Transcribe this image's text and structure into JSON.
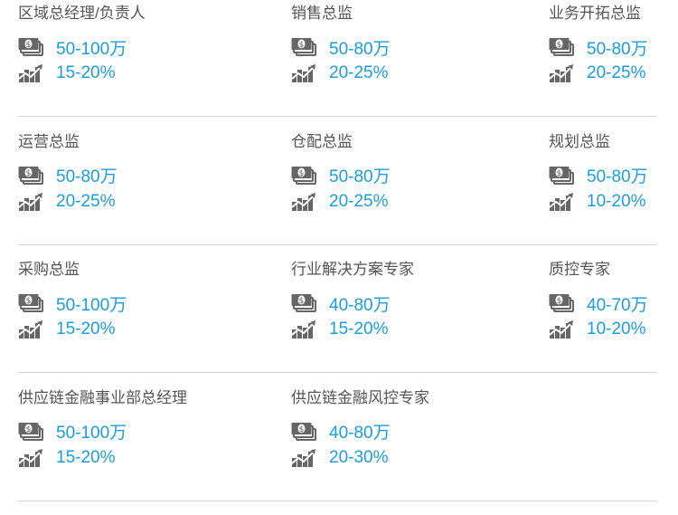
{
  "colors": {
    "value": "#1a9de0",
    "title": "#555555",
    "icon": "#666666"
  },
  "icons": {
    "salary": "money-icon",
    "growth": "growth-chart-icon"
  },
  "rows": [
    [
      {
        "title": "区域总经理/负责人",
        "salary": "50-100万",
        "growth": "15-20%"
      },
      {
        "title": "销售总监",
        "salary": "50-80万",
        "growth": "20-25%"
      },
      {
        "title": "业务开拓总监",
        "salary": "50-80万",
        "growth": "20-25%"
      }
    ],
    [
      {
        "title": "运营总监",
        "salary": "50-80万",
        "growth": "20-25%"
      },
      {
        "title": "仓配总监",
        "salary": "50-80万",
        "growth": "20-25%"
      },
      {
        "title": "规划总监",
        "salary": "50-80万",
        "growth": "10-20%"
      }
    ],
    [
      {
        "title": "采购总监",
        "salary": "50-100万",
        "growth": "15-20%"
      },
      {
        "title": "行业解决方案专家",
        "salary": "40-80万",
        "growth": "15-20%"
      },
      {
        "title": "质控专家",
        "salary": "40-70万",
        "growth": "10-20%"
      }
    ],
    [
      {
        "title": "供应链金融事业部总经理",
        "salary": "50-100万",
        "growth": "15-20%"
      },
      {
        "title": "供应链金融风控专家",
        "salary": "40-80万",
        "growth": "20-30%"
      }
    ]
  ]
}
